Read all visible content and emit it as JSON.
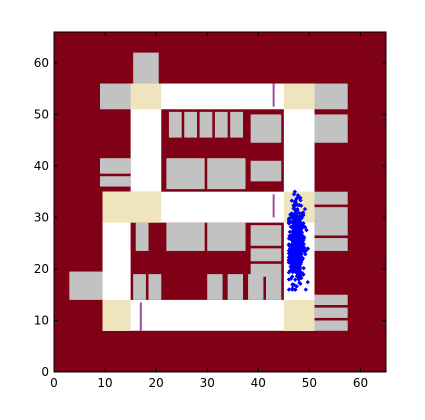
{
  "chart_data": {
    "type": "scatter",
    "title": "",
    "xlabel": "",
    "ylabel": "",
    "xlim": [
      0,
      65
    ],
    "ylim": [
      0,
      66
    ],
    "xticks": [
      0,
      10,
      20,
      30,
      40,
      50,
      60
    ],
    "yticks": [
      0,
      10,
      20,
      30,
      40,
      50,
      60
    ],
    "grid": false,
    "legend": "none",
    "colors": {
      "background": "#800015",
      "corridor": "#ffffff",
      "intersection": "#efe5bd",
      "building": "#c2c2c2",
      "marker": "#a04ca0",
      "points": "#0000ff"
    },
    "map_layers": {
      "corridors": [
        {
          "x": [
            9,
            57.5
          ],
          "y": [
            8,
            66
          ]
        },
        {
          "x": [
            9.5,
            51
          ],
          "y": [
            8,
            14
          ]
        },
        {
          "x": [
            9.5,
            51
          ],
          "y": [
            29,
            35
          ]
        },
        {
          "x": [
            15,
            51
          ],
          "y": [
            51,
            56
          ]
        },
        {
          "x": [
            9.5,
            15
          ],
          "y": [
            8,
            35
          ]
        },
        {
          "x": [
            15,
            21
          ],
          "y": [
            35,
            56
          ]
        },
        {
          "x": [
            45,
            51
          ],
          "y": [
            8,
            56
          ]
        }
      ],
      "intersections": [
        {
          "x": [
            15,
            21
          ],
          "y": [
            51,
            56
          ]
        },
        {
          "x": [
            45,
            51
          ],
          "y": [
            51,
            56
          ]
        },
        {
          "x": [
            9.5,
            21
          ],
          "y": [
            29,
            35
          ]
        },
        {
          "x": [
            45,
            51
          ],
          "y": [
            29,
            35
          ]
        },
        {
          "x": [
            9.5,
            15
          ],
          "y": [
            8,
            14
          ]
        },
        {
          "x": [
            45,
            51
          ],
          "y": [
            8,
            14
          ]
        }
      ],
      "buildings": [
        {
          "x": [
            15.5,
            20.5
          ],
          "y": [
            56,
            62
          ]
        },
        {
          "x": [
            9,
            15
          ],
          "y": [
            53,
            56
          ]
        },
        {
          "x": [
            9,
            15
          ],
          "y": [
            51,
            53
          ]
        },
        {
          "x": [
            51,
            57.5
          ],
          "y": [
            51,
            56
          ]
        },
        {
          "x": [
            22.5,
            25
          ],
          "y": [
            45.5,
            50.5
          ]
        },
        {
          "x": [
            25.5,
            28
          ],
          "y": [
            45.5,
            50.5
          ]
        },
        {
          "x": [
            28.5,
            31
          ],
          "y": [
            45.5,
            50.5
          ]
        },
        {
          "x": [
            31.5,
            34
          ],
          "y": [
            45.5,
            50.5
          ]
        },
        {
          "x": [
            34.5,
            37
          ],
          "y": [
            45.5,
            50.5
          ]
        },
        {
          "x": [
            38.5,
            44.5
          ],
          "y": [
            44.5,
            50
          ]
        },
        {
          "x": [
            51,
            57.5
          ],
          "y": [
            44.5,
            50
          ]
        },
        {
          "x": [
            9,
            15
          ],
          "y": [
            38.5,
            41.5
          ]
        },
        {
          "x": [
            9,
            15
          ],
          "y": [
            36,
            38
          ]
        },
        {
          "x": [
            22,
            29.5
          ],
          "y": [
            35.5,
            41.5
          ]
        },
        {
          "x": [
            30,
            37.5
          ],
          "y": [
            35.5,
            41.5
          ]
        },
        {
          "x": [
            38.5,
            44.5
          ],
          "y": [
            37,
            41
          ]
        },
        {
          "x": [
            51,
            57.5
          ],
          "y": [
            32.5,
            35
          ]
        },
        {
          "x": [
            51,
            57.5
          ],
          "y": [
            29.5,
            32
          ]
        },
        {
          "x": [
            16,
            18.5
          ],
          "y": [
            23.5,
            29
          ]
        },
        {
          "x": [
            22,
            29.5
          ],
          "y": [
            23.5,
            29
          ]
        },
        {
          "x": [
            30,
            37.5
          ],
          "y": [
            23.5,
            29
          ]
        },
        {
          "x": [
            38.5,
            44.5
          ],
          "y": [
            24.5,
            28.5
          ]
        },
        {
          "x": [
            38.5,
            44.5
          ],
          "y": [
            21.5,
            24
          ]
        },
        {
          "x": [
            38.5,
            44.5
          ],
          "y": [
            18.5,
            21
          ]
        },
        {
          "x": [
            51,
            57.5
          ],
          "y": [
            26.5,
            29.5
          ]
        },
        {
          "x": [
            51,
            57.5
          ],
          "y": [
            23.5,
            26
          ]
        },
        {
          "x": [
            3,
            9.5
          ],
          "y": [
            14,
            19.5
          ]
        },
        {
          "x": [
            15.5,
            18
          ],
          "y": [
            14,
            19
          ]
        },
        {
          "x": [
            18.5,
            21
          ],
          "y": [
            14,
            19
          ]
        },
        {
          "x": [
            30,
            33
          ],
          "y": [
            14,
            19
          ]
        },
        {
          "x": [
            34,
            37
          ],
          "y": [
            14,
            19
          ]
        },
        {
          "x": [
            38,
            41
          ],
          "y": [
            14,
            19
          ]
        },
        {
          "x": [
            41.5,
            44.5
          ],
          "y": [
            14,
            19
          ]
        },
        {
          "x": [
            51,
            57.5
          ],
          "y": [
            13,
            15
          ]
        },
        {
          "x": [
            51,
            57.5
          ],
          "y": [
            10.5,
            12.5
          ]
        },
        {
          "x": [
            51,
            57.5
          ],
          "y": [
            8,
            10
          ]
        }
      ],
      "marker_lines": [
        {
          "x": 43,
          "y": [
            51.5,
            56
          ]
        },
        {
          "x": 43,
          "y": [
            30,
            34.5
          ]
        },
        {
          "x": 17,
          "y": [
            8,
            13.5
          ]
        }
      ]
    },
    "scatter_cloud": {
      "center": [
        47.5,
        25
      ],
      "x_range": [
        46,
        50
      ],
      "y_range": [
        16,
        35
      ],
      "count": 480
    }
  }
}
